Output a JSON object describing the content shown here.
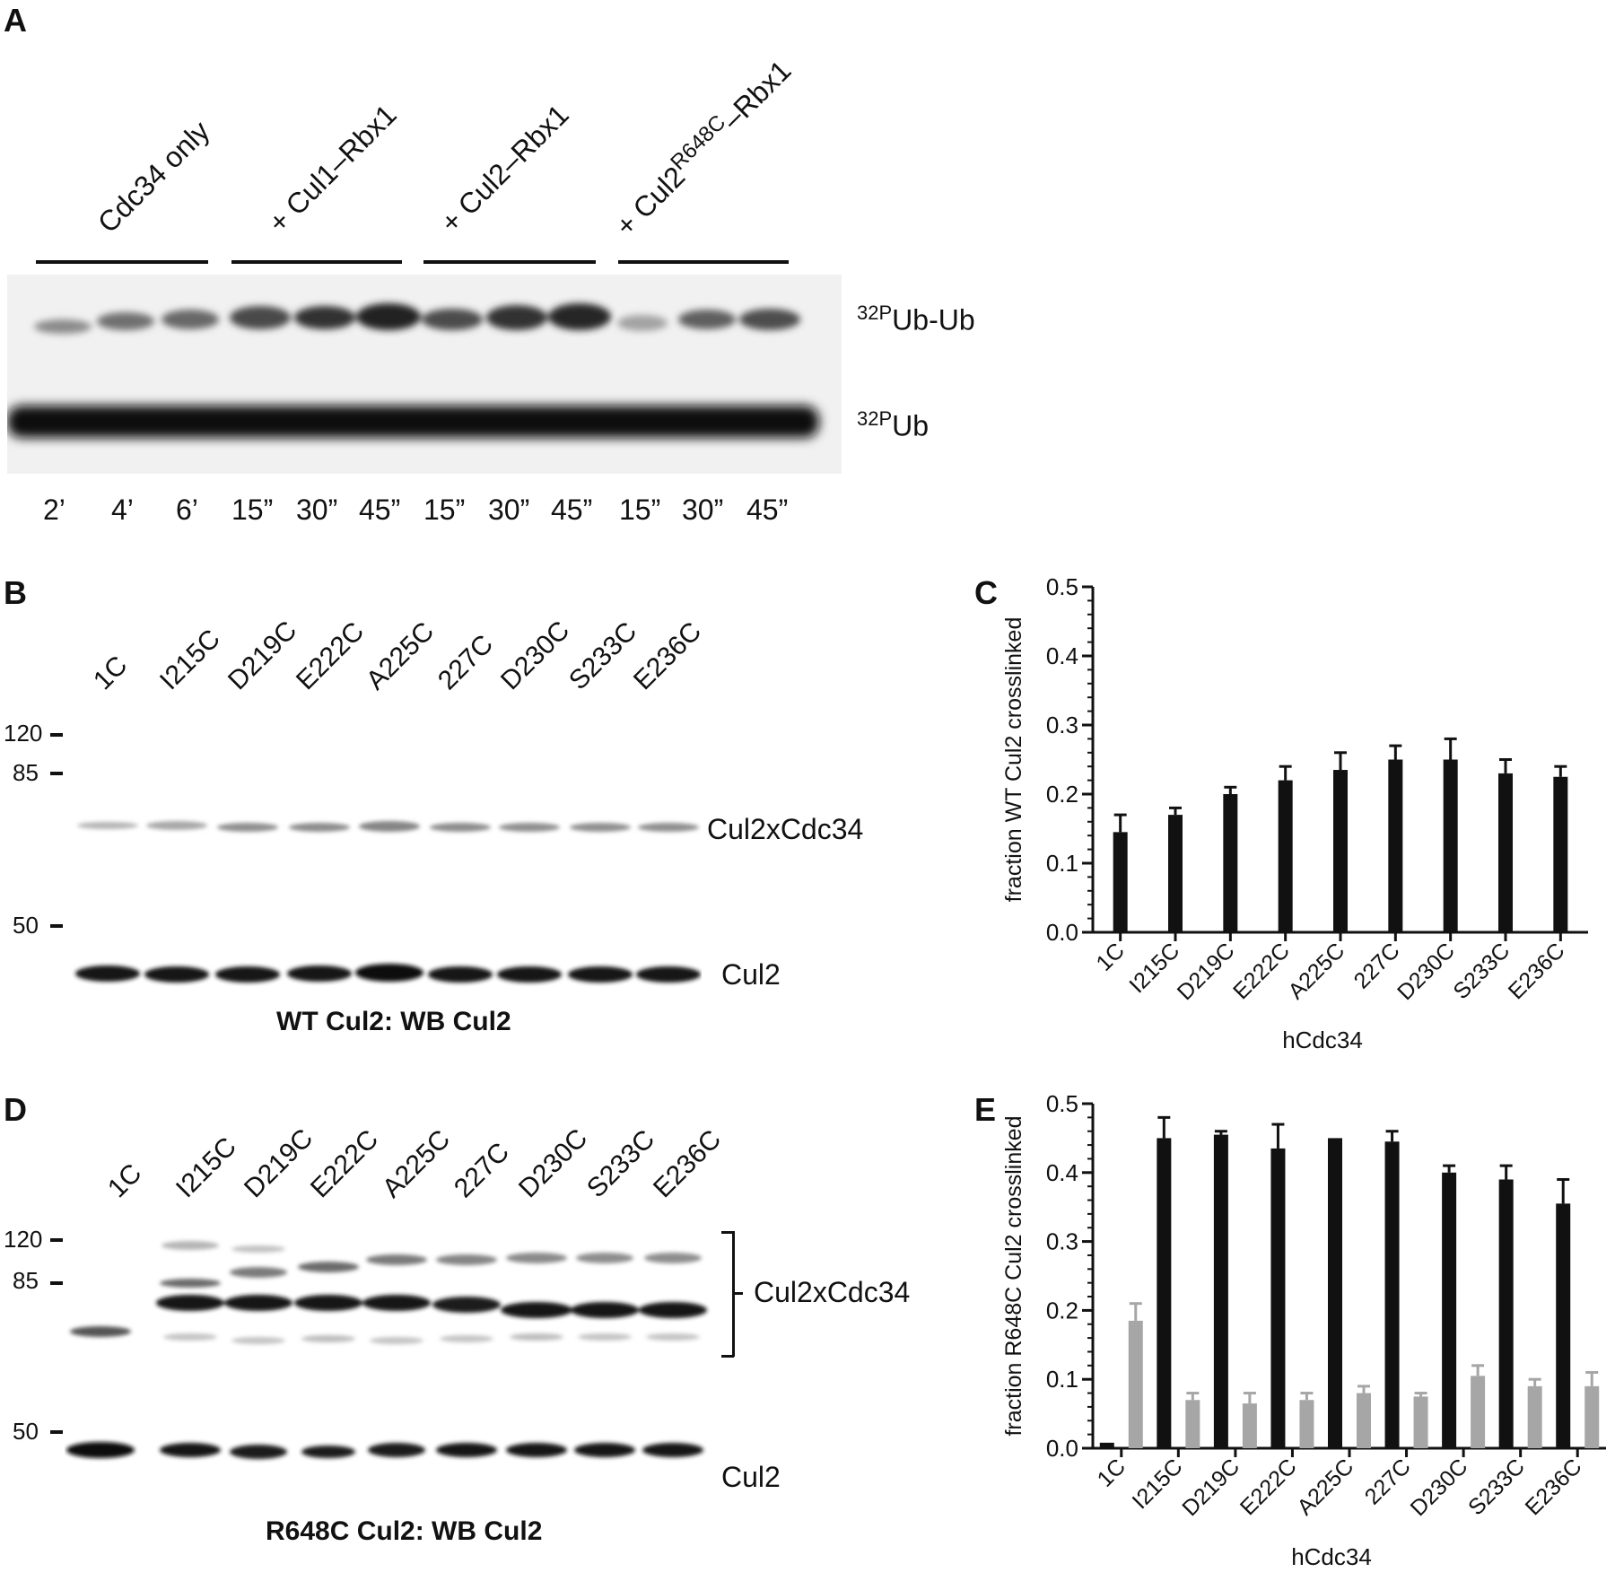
{
  "panels": {
    "A": {
      "label": "A",
      "groups": [
        "Cdc34 only",
        "+ Cul1–Rbx1",
        "+ Cul2–Rbx1"
      ],
      "group4": {
        "prefix": "+ Cul2",
        "sup": "R648C",
        "suffix": "–Rbx1"
      },
      "bands": [
        {
          "sup": "32P",
          "text": "Ub-Ub"
        },
        {
          "sup": "32P",
          "text": "Ub"
        }
      ],
      "times": [
        "2’",
        "4’",
        "6’",
        "15”",
        "30”",
        "45”",
        "15”",
        "30”",
        "45”",
        "15”",
        "30”",
        "45”"
      ]
    },
    "B": {
      "label": "B",
      "lanes": [
        "1C",
        "I215C",
        "D219C",
        "E222C",
        "A225C",
        "227C",
        "D230C",
        "S233C",
        "E236C"
      ],
      "markers": [
        "120",
        "85",
        "50"
      ],
      "bands": [
        "Cul2xCdc34",
        "Cul2"
      ],
      "caption": "WT Cul2: WB Cul2"
    },
    "D": {
      "label": "D",
      "lanes": [
        "1C",
        "I215C",
        "D219C",
        "E222C",
        "A225C",
        "227C",
        "D230C",
        "S233C",
        "E236C"
      ],
      "markers": [
        "120",
        "85",
        "50"
      ],
      "bands": [
        "Cul2xCdc34",
        "Cul2"
      ],
      "caption": "R648C Cul2: WB Cul2"
    },
    "C": {
      "label": "C"
    },
    "E": {
      "label": "E"
    }
  },
  "chart_data": [
    {
      "type": "bar",
      "panel": "C",
      "categories": [
        "1C",
        "I215C",
        "D219C",
        "E222C",
        "A225C",
        "227C",
        "D230C",
        "S233C",
        "E236C"
      ],
      "series": [
        {
          "values": [
            0.145,
            0.17,
            0.2,
            0.22,
            0.235,
            0.25,
            0.25,
            0.23,
            0.225
          ],
          "errors": [
            0.025,
            0.01,
            0.01,
            0.02,
            0.025,
            0.02,
            0.03,
            0.02,
            0.015
          ],
          "color": "#111111"
        }
      ],
      "xlabel": "hCdc34",
      "ylabel": "fraction WT Cul2 crosslinked",
      "ylim": [
        0,
        0.5
      ],
      "yticks": [
        "0.0",
        "0.1",
        "0.2",
        "0.3",
        "0.4",
        "0.5"
      ]
    },
    {
      "type": "bar",
      "panel": "E",
      "categories": [
        "1C",
        "I215C",
        "D219C",
        "E222C",
        "A225C",
        "227C",
        "D230C",
        "S233C",
        "E236C"
      ],
      "series": [
        {
          "values": [
            0.008,
            0.45,
            0.455,
            0.435,
            0.45,
            0.445,
            0.4,
            0.39,
            0.355
          ],
          "errors": [
            0.0,
            0.03,
            0.005,
            0.035,
            0.0,
            0.015,
            0.01,
            0.02,
            0.035
          ],
          "color": "#111111"
        },
        {
          "values": [
            0.185,
            0.07,
            0.065,
            0.07,
            0.08,
            0.075,
            0.105,
            0.09,
            0.09
          ],
          "errors": [
            0.025,
            0.01,
            0.015,
            0.01,
            0.01,
            0.005,
            0.015,
            0.01,
            0.02
          ],
          "color": "#a6a6a6"
        }
      ],
      "xlabel": "hCdc34",
      "ylabel": "fraction R648C Cul2 crosslinked",
      "ylim": [
        0,
        0.5
      ],
      "yticks": [
        "0.0",
        "0.1",
        "0.2",
        "0.3",
        "0.4",
        "0.5"
      ]
    }
  ]
}
